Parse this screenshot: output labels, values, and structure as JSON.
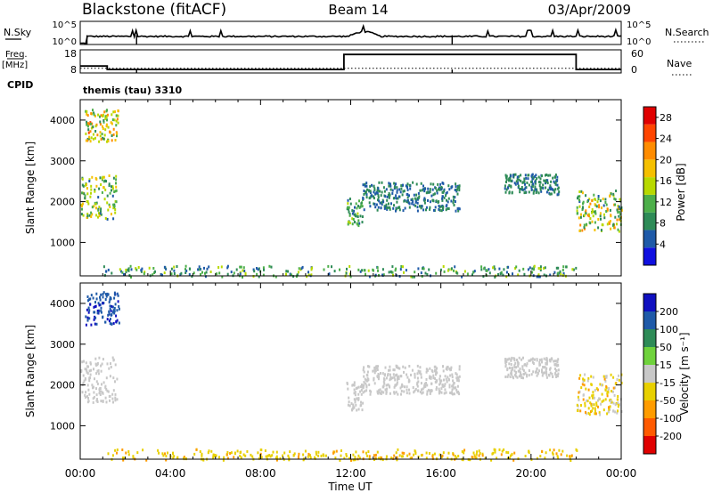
{
  "header": {
    "station": "Blackstone (fitACF)",
    "beam": "Beam 14",
    "date": "03/Apr/2009"
  },
  "colors": {
    "power_scale": [
      "#1010e0",
      "#1f5aa8",
      "#2e8b57",
      "#4daf4a",
      "#b8d900",
      "#f5c000",
      "#ff8c00",
      "#ff4500",
      "#e00000"
    ],
    "velocity_scale": [
      "#1010c0",
      "#1f5aa8",
      "#2e8b57",
      "#6fd23c",
      "#c8c8c8",
      "#e8d000",
      "#ff9c00",
      "#ff5a00",
      "#e00000"
    ],
    "ground_scatter": "#c0c0c0"
  },
  "panels": {
    "nsky": {
      "left_label": "N.Sky",
      "right_label": "N.Search",
      "left_ticks": [
        "10^5",
        "10^0"
      ],
      "right_ticks": [
        "10^5",
        "10^0"
      ]
    },
    "freq": {
      "left_label_1": "Freq.",
      "left_label_2": "[MHz]",
      "right_label": "Nave",
      "left_ticks": [
        "18",
        "8"
      ],
      "right_ticks": [
        "60",
        "0"
      ],
      "cpid_label": "CPID",
      "cpid_value": "themis (tau) 3310"
    },
    "power": {
      "ylabel": "Slant Range [km]",
      "yticks": [
        "4000",
        "3000",
        "2000",
        "1000"
      ],
      "colorbar_label": "Power [dB]",
      "colorbar_ticks": [
        "28",
        "24",
        "20",
        "16",
        "12",
        "8",
        "4"
      ]
    },
    "velocity": {
      "ylabel": "Slant Range [km]",
      "yticks": [
        "4000",
        "3000",
        "2000",
        "1000"
      ],
      "colorbar_label": "Velocity [m s⁻¹]",
      "colorbar_ticks": [
        "200",
        "100",
        "50",
        "15",
        "-15",
        "-50",
        "-100",
        "-200"
      ]
    }
  },
  "xaxis": {
    "label": "Time UT",
    "ticks": [
      "00:00",
      "04:00",
      "08:00",
      "12:00",
      "16:00",
      "20:00",
      "00:00"
    ]
  },
  "chart_data": [
    {
      "type": "line",
      "name": "nsky_nsearch",
      "x_hours": [
        0,
        0.3,
        0.3,
        1.2,
        2.5,
        2.5,
        5,
        8,
        10,
        11,
        12,
        12.8,
        13.3,
        14,
        16,
        16.5,
        16.5,
        18,
        20,
        21,
        22,
        23,
        24
      ],
      "nsky_level": [
        0.05,
        0.05,
        0.3,
        0.35,
        0.35,
        0.35,
        0.35,
        0.35,
        0.35,
        0.35,
        0.45,
        0.55,
        0.4,
        0.35,
        0.35,
        0.35,
        0.35,
        0.35,
        0.35,
        0.35,
        0.35,
        0.35,
        0.35
      ],
      "dropouts_hours": [
        0.3,
        2.5,
        16.5
      ]
    },
    {
      "type": "line",
      "name": "frequency_nave",
      "freq_mhz": {
        "x_hours": [
          0,
          1.2,
          1.2,
          11.7,
          11.7,
          22.0,
          22.0,
          24
        ],
        "y": [
          11.0,
          11.0,
          9.5,
          9.5,
          16.0,
          16.0,
          9.5,
          9.5
        ]
      },
      "nave": {
        "x_hours": [
          0,
          24
        ],
        "y": [
          12,
          12
        ]
      },
      "dropouts_hours": [
        2.5,
        16.5
      ],
      "freq_ylim": [
        8,
        18
      ],
      "nave_ylim": [
        0,
        60
      ]
    },
    {
      "type": "heatmap",
      "name": "power",
      "x_unit": "hours UT",
      "y_unit": "km",
      "xlim": [
        0,
        24
      ],
      "ylim": [
        180,
        4500
      ],
      "zlim": [
        0,
        30
      ],
      "patches": [
        {
          "t": [
            0.0,
            1.6
          ],
          "r": [
            1600,
            2700
          ],
          "v": [
            6,
            20
          ]
        },
        {
          "t": [
            0.2,
            1.7
          ],
          "r": [
            3500,
            4300
          ],
          "v": [
            8,
            24
          ]
        },
        {
          "t": [
            11.8,
            12.5
          ],
          "r": [
            1400,
            2100
          ],
          "v": [
            6,
            14
          ]
        },
        {
          "t": [
            12.5,
            16.8
          ],
          "r": [
            1800,
            2500
          ],
          "v": [
            4,
            10
          ]
        },
        {
          "t": [
            18.8,
            21.2
          ],
          "r": [
            2200,
            2700
          ],
          "v": [
            4,
            10
          ]
        },
        {
          "t": [
            22.0,
            24.0
          ],
          "r": [
            1300,
            2300
          ],
          "v": [
            6,
            22
          ]
        },
        {
          "t": [
            1.0,
            22.0
          ],
          "r": [
            180,
            450
          ],
          "v": [
            4,
            16
          ]
        }
      ]
    },
    {
      "type": "heatmap",
      "name": "velocity",
      "x_unit": "hours UT",
      "y_unit": "km",
      "xlim": [
        0,
        24
      ],
      "ylim": [
        180,
        4500
      ],
      "zlim": [
        -250,
        250
      ],
      "patches": [
        {
          "t": [
            0.0,
            1.6
          ],
          "r": [
            1600,
            2700
          ],
          "v": [
            -10,
            10
          ]
        },
        {
          "t": [
            0.2,
            1.7
          ],
          "r": [
            3500,
            4300
          ],
          "v": [
            150,
            220
          ]
        },
        {
          "t": [
            11.8,
            12.5
          ],
          "r": [
            1400,
            2100
          ],
          "v": [
            -10,
            10
          ]
        },
        {
          "t": [
            12.5,
            16.8
          ],
          "r": [
            1800,
            2500
          ],
          "v": [
            -10,
            10
          ]
        },
        {
          "t": [
            18.8,
            21.2
          ],
          "r": [
            2200,
            2700
          ],
          "v": [
            -10,
            10
          ]
        },
        {
          "t": [
            22.0,
            24.0
          ],
          "r": [
            1300,
            2300
          ],
          "v": [
            -60,
            10
          ]
        },
        {
          "t": [
            1.0,
            22.0
          ],
          "r": [
            180,
            450
          ],
          "v": [
            -60,
            -15
          ]
        }
      ]
    }
  ]
}
